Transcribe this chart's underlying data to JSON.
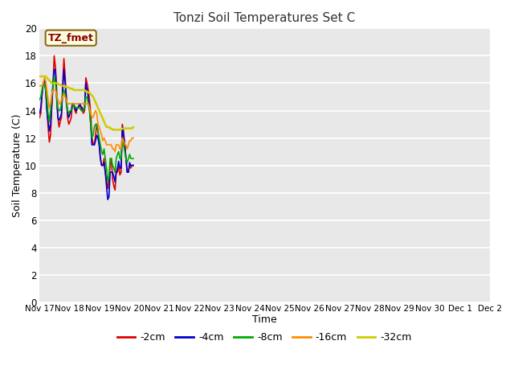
{
  "title": "Tonzi Soil Temperatures Set C",
  "xlabel": "Time",
  "ylabel": "Soil Temperature (C)",
  "annotation": "TZ_fmet",
  "ylim": [
    0,
    20
  ],
  "yticks": [
    0,
    2,
    4,
    6,
    8,
    10,
    12,
    14,
    16,
    18,
    20
  ],
  "figsize": [
    6.4,
    4.8
  ],
  "dpi": 100,
  "bg_color": "#ffffff",
  "plot_bg": "#e8e8e8",
  "series": {
    "-2cm": {
      "color": "#dd0000",
      "lw": 1.2,
      "y": [
        13.5,
        13.8,
        15.2,
        16.0,
        16.2,
        15.5,
        14.2,
        12.8,
        11.7,
        12.2,
        14.2,
        15.8,
        18.0,
        17.2,
        15.5,
        13.5,
        12.8,
        13.2,
        13.5,
        16.0,
        17.8,
        16.5,
        15.0,
        13.5,
        13.0,
        13.2,
        13.5,
        14.5,
        14.5,
        14.0,
        13.8,
        14.2,
        14.2,
        14.5,
        14.2,
        14.0,
        13.8,
        14.0,
        16.4,
        16.0,
        15.5,
        14.8,
        13.8,
        12.0,
        11.6,
        11.5,
        12.2,
        13.0,
        12.5,
        11.5,
        10.5,
        10.0,
        10.0,
        10.5,
        9.5,
        9.0,
        8.3,
        8.8,
        10.0,
        10.5,
        9.0,
        8.5,
        8.2,
        9.5,
        9.5,
        10.0,
        9.3,
        9.5,
        13.0,
        12.5,
        11.5,
        10.5,
        9.5,
        9.5,
        10.0,
        9.8,
        10.0,
        10.0
      ]
    },
    "-4cm": {
      "color": "#0000cc",
      "lw": 1.2,
      "y": [
        13.8,
        14.2,
        15.2,
        16.0,
        16.2,
        15.5,
        14.0,
        13.2,
        12.5,
        13.0,
        14.5,
        16.0,
        17.0,
        17.0,
        15.0,
        13.5,
        13.3,
        13.5,
        13.8,
        15.5,
        17.0,
        16.0,
        14.8,
        13.8,
        13.5,
        13.8,
        14.0,
        14.5,
        14.5,
        14.2,
        14.0,
        14.2,
        14.3,
        14.5,
        14.3,
        14.2,
        14.0,
        14.2,
        16.0,
        15.5,
        15.0,
        14.2,
        13.0,
        11.5,
        11.5,
        11.5,
        11.8,
        12.2,
        12.0,
        11.5,
        10.5,
        10.0,
        10.0,
        10.2,
        9.5,
        8.5,
        7.5,
        7.7,
        9.5,
        9.5,
        9.5,
        9.2,
        8.8,
        9.5,
        9.8,
        10.3,
        9.8,
        9.8,
        12.8,
        12.2,
        11.5,
        10.5,
        9.5,
        9.5,
        10.2,
        10.0,
        10.0,
        10.0
      ]
    },
    "-8cm": {
      "color": "#00aa00",
      "lw": 1.2,
      "y": [
        14.8,
        15.0,
        15.5,
        16.0,
        16.0,
        15.5,
        14.8,
        13.8,
        13.2,
        14.0,
        15.0,
        15.8,
        16.5,
        16.0,
        15.0,
        14.2,
        14.0,
        14.0,
        14.5,
        15.2,
        15.5,
        15.2,
        14.5,
        14.0,
        13.8,
        14.0,
        14.0,
        14.2,
        14.5,
        14.3,
        14.2,
        14.2,
        14.2,
        14.2,
        14.0,
        14.0,
        14.0,
        14.2,
        15.0,
        15.0,
        14.5,
        14.0,
        13.0,
        12.0,
        12.2,
        12.8,
        13.0,
        13.0,
        12.5,
        12.0,
        11.5,
        11.0,
        10.8,
        11.2,
        10.5,
        9.8,
        8.8,
        9.2,
        10.5,
        10.5,
        10.0,
        9.8,
        9.5,
        10.5,
        10.8,
        11.0,
        10.5,
        10.5,
        12.0,
        11.5,
        11.0,
        10.5,
        10.2,
        10.5,
        10.8,
        10.5,
        10.5,
        10.5
      ]
    },
    "-16cm": {
      "color": "#ff8c00",
      "lw": 1.2,
      "y": [
        15.8,
        15.8,
        15.8,
        16.0,
        16.4,
        16.2,
        15.5,
        14.8,
        14.2,
        14.5,
        15.2,
        15.5,
        15.5,
        15.5,
        15.2,
        14.8,
        14.5,
        14.5,
        14.8,
        15.0,
        15.2,
        15.0,
        14.8,
        14.5,
        14.5,
        14.5,
        14.5,
        14.5,
        14.5,
        14.5,
        14.5,
        14.5,
        14.5,
        14.5,
        14.5,
        14.5,
        14.5,
        14.5,
        14.5,
        14.5,
        14.5,
        14.2,
        13.8,
        13.5,
        13.5,
        13.8,
        14.0,
        13.8,
        13.0,
        12.8,
        12.5,
        12.2,
        11.8,
        12.0,
        11.8,
        11.5,
        11.5,
        11.5,
        11.5,
        11.5,
        11.2,
        11.2,
        11.0,
        11.5,
        11.5,
        11.5,
        11.2,
        11.2,
        12.0,
        11.8,
        11.5,
        11.5,
        11.2,
        11.5,
        11.8,
        11.8,
        12.0,
        12.0
      ]
    },
    "-32cm": {
      "color": "#cccc00",
      "lw": 1.8,
      "y": [
        16.5,
        16.5,
        16.5,
        16.5,
        16.5,
        16.5,
        16.4,
        16.3,
        16.2,
        16.1,
        16.0,
        16.0,
        16.0,
        16.0,
        16.0,
        16.0,
        15.9,
        15.9,
        15.8,
        15.8,
        15.8,
        15.8,
        15.7,
        15.7,
        15.7,
        15.6,
        15.6,
        15.6,
        15.5,
        15.5,
        15.5,
        15.5,
        15.5,
        15.5,
        15.5,
        15.5,
        15.5,
        15.5,
        15.4,
        15.4,
        15.3,
        15.3,
        15.2,
        15.1,
        15.0,
        14.8,
        14.6,
        14.4,
        14.2,
        14.0,
        13.8,
        13.6,
        13.4,
        13.2,
        13.0,
        12.8,
        12.8,
        12.8,
        12.7,
        12.7,
        12.6,
        12.6,
        12.6,
        12.6,
        12.6,
        12.6,
        12.6,
        12.6,
        12.7,
        12.7,
        12.7,
        12.7,
        12.7,
        12.7,
        12.7,
        12.7,
        12.7,
        12.8
      ]
    }
  },
  "xtick_labels": [
    "Nov 17",
    "Nov 18",
    "Nov 19",
    "Nov 20",
    "Nov 21",
    "Nov 22",
    "Nov 23",
    "Nov 24",
    "Nov 25",
    "Nov 26",
    "Nov 27",
    "Nov 28",
    "Nov 29",
    "Nov 30",
    "Dec 1",
    "Dec 2"
  ],
  "xtick_positions": [
    0,
    5,
    10,
    15,
    20,
    25,
    30,
    35,
    40,
    45,
    50,
    55,
    60,
    65,
    70,
    75
  ],
  "legend_order": [
    "-2cm",
    "-4cm",
    "-8cm",
    "-16cm",
    "-32cm"
  ],
  "legend_colors": [
    "#dd0000",
    "#0000cc",
    "#00aa00",
    "#ff8c00",
    "#cccc00"
  ]
}
